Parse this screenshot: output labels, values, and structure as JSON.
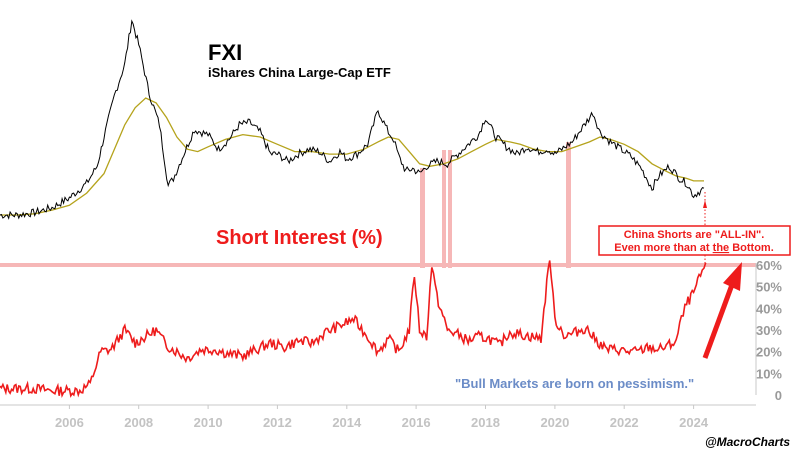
{
  "title": "FXI",
  "subtitle": "iShares China Large-Cap ETF",
  "panel_label": "Short Interest (%)",
  "annotation_box": {
    "line1": "China Shorts are \"ALL-IN\".",
    "line2_pre": "Even more than at ",
    "line2_em": "the",
    "line2_post": " Bottom."
  },
  "quote": "\"Bull Markets are born on pessimism.\"",
  "credit": "@MacroCharts",
  "colors": {
    "price": "#000000",
    "moving_average": "#b5a31c",
    "short_interest": "#ee1c1c",
    "highlight": "#f6b7b7",
    "arrow": "#ee1c1c"
  },
  "chart_data": [
    {
      "type": "line",
      "title": "FXI",
      "subtitle": "iShares China Large-Cap ETF",
      "xlim": [
        2004.0,
        2025.8
      ],
      "series": [
        {
          "style": "price",
          "x": [
            2004.0,
            2004.5,
            2005.0,
            2005.5,
            2006.0,
            2006.5,
            2006.8,
            2007.0,
            2007.3,
            2007.6,
            2007.8,
            2008.0,
            2008.3,
            2008.6,
            2008.85,
            2009.0,
            2009.3,
            2009.6,
            2010.0,
            2010.3,
            2010.6,
            2010.9,
            2011.2,
            2011.5,
            2011.8,
            2012.0,
            2012.3,
            2012.6,
            2012.9,
            2013.2,
            2013.5,
            2013.8,
            2014.0,
            2014.3,
            2014.6,
            2014.9,
            2015.2,
            2015.35,
            2015.5,
            2015.7,
            2015.9,
            2016.1,
            2016.3,
            2016.6,
            2016.9,
            2017.2,
            2017.5,
            2017.8,
            2018.0,
            2018.3,
            2018.6,
            2018.9,
            2019.2,
            2019.5,
            2019.8,
            2020.0,
            2020.2,
            2020.5,
            2020.8,
            2021.1,
            2021.3,
            2021.6,
            2021.9,
            2022.2,
            2022.5,
            2022.8,
            2023.0,
            2023.3,
            2023.6,
            2023.8,
            2024.0,
            2024.3
          ],
          "y": [
            18,
            18,
            19,
            21,
            25,
            31,
            38,
            50,
            67,
            80,
            98,
            88,
            68,
            55,
            30,
            33,
            43,
            53,
            51,
            45,
            49,
            55,
            56,
            52,
            43,
            43,
            40,
            43,
            45,
            44,
            40,
            44,
            41,
            43,
            47,
            61,
            52,
            49,
            42,
            36,
            37,
            35,
            38,
            40,
            39,
            43,
            47,
            51,
            58,
            50,
            46,
            43,
            46,
            44,
            45,
            43,
            45,
            48,
            54,
            60,
            52,
            48,
            45,
            42,
            37,
            29,
            34,
            38,
            33,
            31,
            26,
            29
          ]
        },
        {
          "style": "moving-average",
          "x": [
            2004.0,
            2004.5,
            2005.0,
            2005.5,
            2006.0,
            2006.5,
            2007.0,
            2007.3,
            2007.6,
            2007.9,
            2008.2,
            2008.5,
            2008.8,
            2009.1,
            2009.4,
            2009.7,
            2010.0,
            2010.5,
            2011.0,
            2011.5,
            2012.0,
            2012.5,
            2013.0,
            2013.5,
            2014.0,
            2014.5,
            2014.9,
            2015.2,
            2015.5,
            2015.8,
            2016.1,
            2016.4,
            2016.8,
            2017.2,
            2017.6,
            2018.0,
            2018.3,
            2018.7,
            2019.0,
            2019.4,
            2019.8,
            2020.2,
            2020.6,
            2021.0,
            2021.3,
            2021.6,
            2022.0,
            2022.4,
            2022.8,
            2023.2,
            2023.5,
            2023.8,
            2024.0,
            2024.3
          ],
          "y": [
            18,
            18,
            18.5,
            20,
            22,
            27,
            35,
            45,
            55,
            62,
            66,
            64,
            58,
            50,
            45,
            44,
            46,
            49,
            51,
            50,
            47,
            44,
            44,
            43,
            43,
            45,
            48,
            50,
            49,
            44,
            39,
            38,
            39,
            41,
            44,
            47,
            49,
            48,
            47,
            45,
            44,
            44,
            46,
            48,
            50,
            49,
            47,
            44,
            39,
            36,
            34,
            33,
            32,
            32
          ]
        }
      ]
    },
    {
      "type": "line",
      "title": "Short Interest (%)",
      "xlim": [
        2004.0,
        2025.8
      ],
      "ylim": [
        0,
        60
      ],
      "y_ticks": [
        "0",
        "10%",
        "20%",
        "30%",
        "40%",
        "50%",
        "60%"
      ],
      "x_ticks": [
        "2006",
        "2008",
        "2010",
        "2012",
        "2014",
        "2016",
        "2018",
        "2020",
        "2022",
        "2024"
      ],
      "series": [
        {
          "style": "short-interest",
          "x": [
            2004.0,
            2004.5,
            2005.0,
            2005.5,
            2006.0,
            2006.3,
            2006.6,
            2006.9,
            2007.2,
            2007.6,
            2007.9,
            2008.2,
            2008.5,
            2008.8,
            2009.1,
            2009.4,
            2009.8,
            2010.2,
            2010.6,
            2011.0,
            2011.4,
            2011.8,
            2012.2,
            2012.6,
            2013.0,
            2013.4,
            2013.8,
            2014.2,
            2014.6,
            2014.9,
            2015.2,
            2015.5,
            2015.8,
            2015.95,
            2016.1,
            2016.3,
            2016.45,
            2016.6,
            2016.9,
            2017.2,
            2017.5,
            2017.8,
            2018.1,
            2018.4,
            2018.7,
            2019.0,
            2019.3,
            2019.6,
            2019.85,
            2020.0,
            2020.3,
            2020.6,
            2020.9,
            2021.2,
            2021.5,
            2021.8,
            2022.1,
            2022.4,
            2022.7,
            2023.0,
            2023.3,
            2023.5,
            2023.65,
            2023.8,
            2024.0,
            2024.2,
            2024.35
          ],
          "y": [
            3,
            3,
            3,
            2,
            2,
            2,
            5,
            20,
            21,
            30,
            24,
            27,
            30,
            23,
            20,
            17,
            21,
            21,
            19,
            18,
            21,
            24,
            22,
            25,
            24,
            29,
            32,
            35,
            27,
            20,
            26,
            20,
            30,
            56,
            30,
            27,
            60,
            45,
            30,
            28,
            25,
            27,
            26,
            23,
            29,
            28,
            27,
            26,
            64,
            35,
            27,
            29,
            31,
            25,
            21,
            21,
            20,
            20,
            22,
            21,
            23,
            25,
            35,
            42,
            47,
            55,
            61
          ]
        }
      ]
    }
  ]
}
